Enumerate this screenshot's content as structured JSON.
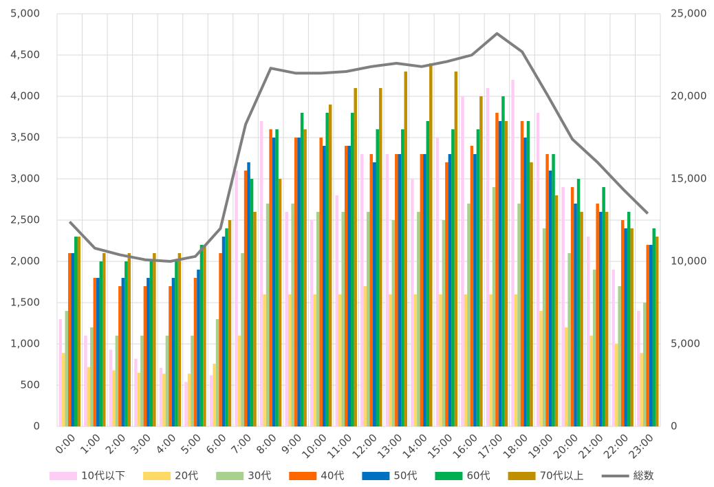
{
  "chart_data": {
    "type": "bar",
    "categories": [
      "0:00",
      "1:00",
      "2:00",
      "3:00",
      "4:00",
      "5:00",
      "6:00",
      "7:00",
      "8:00",
      "9:00",
      "10:00",
      "11:00",
      "12:00",
      "13:00",
      "14:00",
      "15:00",
      "16:00",
      "17:00",
      "18:00",
      "19:00",
      "20:00",
      "21:00",
      "22:00",
      "23:00"
    ],
    "series": [
      {
        "name": "10代以下",
        "color": "#ffccf5",
        "values": [
          1300,
          1100,
          930,
          820,
          710,
          540,
          620,
          3100,
          3700,
          2600,
          2500,
          2800,
          3300,
          3300,
          3000,
          3500,
          4000,
          4100,
          4200,
          3800,
          2900,
          2300,
          1900,
          1400
        ]
      },
      {
        "name": "20代",
        "color": "#ffd966",
        "values": [
          890,
          720,
          680,
          650,
          640,
          640,
          760,
          1100,
          1600,
          1600,
          1600,
          1600,
          1700,
          1600,
          1600,
          1600,
          1600,
          1600,
          1600,
          1400,
          1200,
          1100,
          1000,
          890
        ]
      },
      {
        "name": "30代",
        "color": "#a9d18e",
        "values": [
          1400,
          1200,
          1100,
          1100,
          1100,
          1100,
          1300,
          2100,
          2700,
          2700,
          2600,
          2600,
          2600,
          2500,
          2600,
          2500,
          2700,
          2900,
          2700,
          2400,
          2100,
          1900,
          1700,
          1500
        ]
      },
      {
        "name": "40代",
        "color": "#ff6600",
        "values": [
          2100,
          1800,
          1700,
          1700,
          1700,
          1800,
          2100,
          3100,
          3600,
          3500,
          3500,
          3400,
          3300,
          3300,
          3300,
          3200,
          3400,
          3800,
          3700,
          3300,
          2900,
          2700,
          2500,
          2200
        ]
      },
      {
        "name": "50代",
        "color": "#0070c0",
        "values": [
          2100,
          1800,
          1800,
          1800,
          1800,
          1900,
          2300,
          3200,
          3500,
          3500,
          3400,
          3400,
          3200,
          3300,
          3300,
          3300,
          3300,
          3700,
          3500,
          3100,
          2700,
          2600,
          2400,
          2200
        ]
      },
      {
        "name": "60代",
        "color": "#00b050",
        "values": [
          2300,
          2000,
          2000,
          2000,
          2000,
          2200,
          2400,
          3000,
          3600,
          3800,
          3800,
          3800,
          3600,
          3600,
          3700,
          3600,
          3600,
          4000,
          3700,
          3300,
          3000,
          2900,
          2600,
          2400
        ]
      },
      {
        "name": "70代以上",
        "color": "#bf8f00",
        "values": [
          2300,
          2100,
          2100,
          2100,
          2100,
          2200,
          2500,
          2600,
          3000,
          3600,
          3900,
          4100,
          4100,
          4300,
          4400,
          4300,
          4000,
          3700,
          3200,
          2800,
          2600,
          2600,
          2400,
          2300
        ]
      },
      {
        "name": "総数",
        "color": "#7f7f7f",
        "type": "line",
        "axis": "y2",
        "values": [
          12400,
          10800,
          10400,
          10100,
          10000,
          10300,
          12000,
          18300,
          21700,
          21400,
          21400,
          21500,
          21800,
          22000,
          21800,
          22100,
          22500,
          23800,
          22700,
          20100,
          17400,
          16000,
          14400,
          12900
        ]
      }
    ],
    "ylim": [
      0,
      5000
    ],
    "yticks": [
      0,
      500,
      {
        "value": 1000,
        "label": "1,000"
      },
      {
        "value": 1500,
        "label": "1,500"
      },
      {
        "value": 2000,
        "label": "2,000"
      },
      {
        "value": 2500,
        "label": "2,500"
      },
      {
        "value": 3000,
        "label": "3,000"
      },
      {
        "value": 3500,
        "label": "3,500"
      },
      {
        "value": 4000,
        "label": "4,000"
      },
      {
        "value": 4500,
        "label": "4,500"
      },
      {
        "value": 5000,
        "label": "5,000"
      }
    ],
    "y2lim": [
      0,
      25000
    ],
    "y2ticks": [
      0,
      {
        "value": 5000,
        "label": "5,000"
      },
      {
        "value": 10000,
        "label": "10,000"
      },
      {
        "value": 15000,
        "label": "15,000"
      },
      {
        "value": 20000,
        "label": "20,000"
      },
      {
        "value": 25000,
        "label": "25,000"
      }
    ],
    "grid": true,
    "legend": "bottom"
  }
}
